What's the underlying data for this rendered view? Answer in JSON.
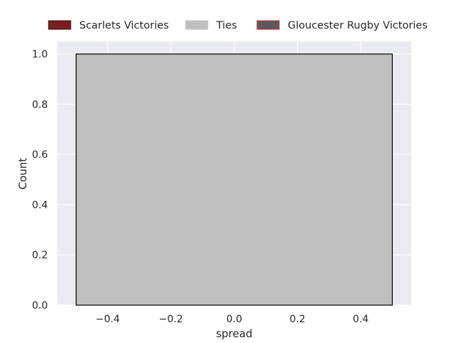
{
  "chart_data": {
    "type": "bar",
    "title": "",
    "xlabel": "spread",
    "ylabel": "Count",
    "xlim": [
      -0.56,
      0.56
    ],
    "ylim": [
      0,
      1.05
    ],
    "xticks": [
      -0.4,
      -0.2,
      0.0,
      0.2,
      0.4
    ],
    "xtick_labels": [
      "−0.4",
      "−0.2",
      "0.0",
      "0.2",
      "0.4"
    ],
    "yticks": [
      0.0,
      0.2,
      0.4,
      0.6,
      0.8,
      1.0
    ],
    "ytick_labels": [
      "0.0",
      "0.2",
      "0.4",
      "0.6",
      "0.8",
      "1.0"
    ],
    "grid": true,
    "legend_position": "top-center",
    "series": [
      {
        "name": "Scarlets Victories",
        "color": "#7a1f1f",
        "edge_color": "#3a0d0d",
        "bars": []
      },
      {
        "name": "Ties",
        "color": "#c0c0c0",
        "edge_color": "#000000",
        "bars": [
          {
            "x0": -0.5,
            "x1": 0.5,
            "value": 1
          }
        ]
      },
      {
        "name": "Gloucester Rugby Victories",
        "color": "#5a5a5a",
        "edge_color": "#d62728",
        "bars": []
      }
    ]
  }
}
